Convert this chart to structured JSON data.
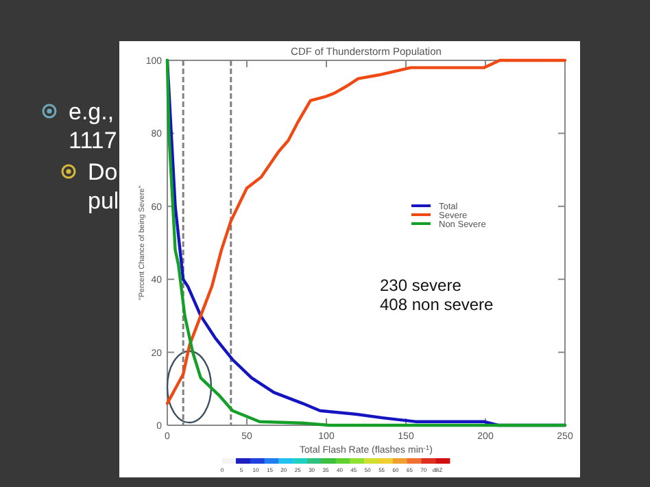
{
  "chart_data": {
    "type": "line",
    "title": "CDF of Thunderstorm Population",
    "xlabel": "Total Flash Rate (flashes min$^{-1}$)",
    "ylabel": "\"Percent Chance of being Severe\"",
    "xlim": [
      0,
      250
    ],
    "ylim": [
      0,
      100
    ],
    "xticks": [
      0,
      50,
      100,
      150,
      200,
      250
    ],
    "yticks": [
      0,
      20,
      40,
      60,
      80,
      100
    ],
    "grid": false,
    "legend": "right",
    "line_style": "solid",
    "marker": "none",
    "series": [
      {
        "name": "Total",
        "color": "#1414c0",
        "x": [
          0,
          5,
          10,
          13,
          21,
          30,
          41,
          53,
          67,
          85,
          96,
          119,
          136,
          156,
          199,
          208,
          250
        ],
        "values": [
          100,
          60,
          40,
          38,
          30,
          24,
          18,
          13,
          9,
          6,
          4,
          3,
          2,
          1,
          1,
          0,
          0
        ]
      },
      {
        "name": "Severe",
        "color": "#f04a14",
        "x": [
          0,
          10,
          14,
          21,
          28,
          34,
          40,
          50,
          59,
          70,
          76,
          82,
          90,
          99,
          105,
          113,
          120,
          133,
          153,
          170,
          199,
          209,
          250
        ],
        "values": [
          6,
          14,
          22,
          30,
          38,
          48,
          56,
          65,
          68,
          75,
          78,
          83,
          89,
          90,
          91,
          93,
          95,
          96,
          98,
          98,
          98,
          100,
          100
        ]
      },
      {
        "name": "Non Severe",
        "color": "#14a028",
        "x": [
          0,
          1,
          5,
          7,
          11,
          16,
          21,
          33,
          41,
          58,
          85,
          102,
          250
        ],
        "values": [
          100,
          80,
          48,
          44,
          30,
          20,
          13,
          8,
          4,
          1,
          0.6,
          0,
          0
        ]
      }
    ],
    "ref_lines": [
      {
        "axis": "x",
        "value": 10,
        "color": "#808080",
        "line_style": "dashed"
      },
      {
        "axis": "x",
        "value": 40,
        "color": "#808080",
        "line_style": "dashed"
      }
    ],
    "annotations": [
      "e.g.,",
      "1117",
      "Do",
      "pul",
      "230 severe",
      "408 non severe",
      "0",
      "5",
      "10",
      "15",
      "20",
      "25",
      "30",
      "35",
      "40",
      "45",
      "50",
      "55",
      "60",
      "65",
      "70",
      "dBZ"
    ]
  }
}
